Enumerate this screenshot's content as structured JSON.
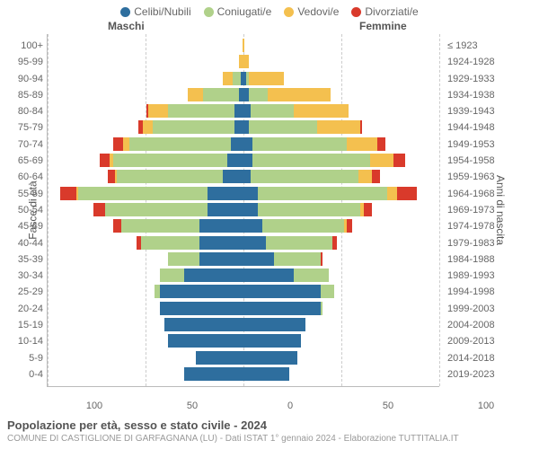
{
  "legend": {
    "items": [
      {
        "label": "Celibi/Nubili",
        "color": "#2e6e9e"
      },
      {
        "label": "Coniugati/e",
        "color": "#b0d18a"
      },
      {
        "label": "Vedovi/e",
        "color": "#f4c04f"
      },
      {
        "label": "Divorziati/e",
        "color": "#d93a2b"
      }
    ]
  },
  "headers": {
    "left": "Maschi",
    "right": "Femmine"
  },
  "axis": {
    "left_title": "Fasce di età",
    "right_title": "Anni di nascita",
    "x_max": 100,
    "x_ticks_left": [
      100,
      50,
      0
    ],
    "x_ticks_right": [
      50,
      100
    ]
  },
  "colors": {
    "celibi": "#2e6e9e",
    "coniugati": "#b0d18a",
    "vedovi": "#f4c04f",
    "divorziati": "#d93a2b",
    "grid": "#cccccc",
    "text": "#666666"
  },
  "rows": [
    {
      "age": "100+",
      "birth": "≤ 1923",
      "m": {
        "c": 0,
        "k": 0,
        "v": 0,
        "d": 0
      },
      "f": {
        "c": 0,
        "k": 0,
        "v": 1,
        "d": 0
      }
    },
    {
      "age": "95-99",
      "birth": "1924-1928",
      "m": {
        "c": 0,
        "k": 0,
        "v": 2,
        "d": 0
      },
      "f": {
        "c": 0,
        "k": 0,
        "v": 3,
        "d": 0
      }
    },
    {
      "age": "90-94",
      "birth": "1929-1933",
      "m": {
        "c": 1,
        "k": 4,
        "v": 5,
        "d": 0
      },
      "f": {
        "c": 2,
        "k": 1,
        "v": 18,
        "d": 0
      }
    },
    {
      "age": "85-89",
      "birth": "1934-1938",
      "m": {
        "c": 2,
        "k": 18,
        "v": 8,
        "d": 0
      },
      "f": {
        "c": 3,
        "k": 10,
        "v": 32,
        "d": 0
      }
    },
    {
      "age": "80-84",
      "birth": "1939-1943",
      "m": {
        "c": 4,
        "k": 34,
        "v": 10,
        "d": 1
      },
      "f": {
        "c": 4,
        "k": 22,
        "v": 28,
        "d": 0
      }
    },
    {
      "age": "75-79",
      "birth": "1944-1948",
      "m": {
        "c": 4,
        "k": 42,
        "v": 5,
        "d": 2
      },
      "f": {
        "c": 3,
        "k": 35,
        "v": 22,
        "d": 1
      }
    },
    {
      "age": "70-74",
      "birth": "1949-1953",
      "m": {
        "c": 6,
        "k": 52,
        "v": 3,
        "d": 5
      },
      "f": {
        "c": 5,
        "k": 48,
        "v": 16,
        "d": 4
      }
    },
    {
      "age": "65-69",
      "birth": "1954-1958",
      "m": {
        "c": 8,
        "k": 58,
        "v": 2,
        "d": 5
      },
      "f": {
        "c": 5,
        "k": 60,
        "v": 12,
        "d": 6
      }
    },
    {
      "age": "60-64",
      "birth": "1959-1963",
      "m": {
        "c": 10,
        "k": 54,
        "v": 1,
        "d": 4
      },
      "f": {
        "c": 4,
        "k": 55,
        "v": 7,
        "d": 4
      }
    },
    {
      "age": "55-59",
      "birth": "1964-1968",
      "m": {
        "c": 18,
        "k": 66,
        "v": 1,
        "d": 8
      },
      "f": {
        "c": 8,
        "k": 66,
        "v": 5,
        "d": 10
      }
    },
    {
      "age": "50-54",
      "birth": "1969-1973",
      "m": {
        "c": 18,
        "k": 52,
        "v": 0,
        "d": 6
      },
      "f": {
        "c": 8,
        "k": 52,
        "v": 2,
        "d": 4
      }
    },
    {
      "age": "45-49",
      "birth": "1974-1978",
      "m": {
        "c": 22,
        "k": 40,
        "v": 0,
        "d": 4
      },
      "f": {
        "c": 10,
        "k": 42,
        "v": 1,
        "d": 3
      }
    },
    {
      "age": "40-44",
      "birth": "1979-1983",
      "m": {
        "c": 22,
        "k": 30,
        "v": 0,
        "d": 2
      },
      "f": {
        "c": 12,
        "k": 34,
        "v": 0,
        "d": 2
      }
    },
    {
      "age": "35-39",
      "birth": "1984-1988",
      "m": {
        "c": 22,
        "k": 16,
        "v": 0,
        "d": 0
      },
      "f": {
        "c": 16,
        "k": 24,
        "v": 0,
        "d": 1
      }
    },
    {
      "age": "30-34",
      "birth": "1989-1993",
      "m": {
        "c": 30,
        "k": 12,
        "v": 0,
        "d": 0
      },
      "f": {
        "c": 26,
        "k": 18,
        "v": 0,
        "d": 0
      }
    },
    {
      "age": "25-29",
      "birth": "1994-1998",
      "m": {
        "c": 42,
        "k": 3,
        "v": 0,
        "d": 0
      },
      "f": {
        "c": 40,
        "k": 7,
        "v": 0,
        "d": 0
      }
    },
    {
      "age": "20-24",
      "birth": "1999-2003",
      "m": {
        "c": 42,
        "k": 0,
        "v": 0,
        "d": 0
      },
      "f": {
        "c": 40,
        "k": 1,
        "v": 0,
        "d": 0
      }
    },
    {
      "age": "15-19",
      "birth": "2004-2008",
      "m": {
        "c": 40,
        "k": 0,
        "v": 0,
        "d": 0
      },
      "f": {
        "c": 32,
        "k": 0,
        "v": 0,
        "d": 0
      }
    },
    {
      "age": "10-14",
      "birth": "2009-2013",
      "m": {
        "c": 38,
        "k": 0,
        "v": 0,
        "d": 0
      },
      "f": {
        "c": 30,
        "k": 0,
        "v": 0,
        "d": 0
      }
    },
    {
      "age": "5-9",
      "birth": "2014-2018",
      "m": {
        "c": 24,
        "k": 0,
        "v": 0,
        "d": 0
      },
      "f": {
        "c": 28,
        "k": 0,
        "v": 0,
        "d": 0
      }
    },
    {
      "age": "0-4",
      "birth": "2019-2023",
      "m": {
        "c": 30,
        "k": 0,
        "v": 0,
        "d": 0
      },
      "f": {
        "c": 24,
        "k": 0,
        "v": 0,
        "d": 0
      }
    }
  ],
  "footer": {
    "title": "Popolazione per età, sesso e stato civile - 2024",
    "subtitle": "COMUNE DI CASTIGLIONE DI GARFAGNANA (LU) - Dati ISTAT 1° gennaio 2024 - Elaborazione TUTTITALIA.IT"
  }
}
